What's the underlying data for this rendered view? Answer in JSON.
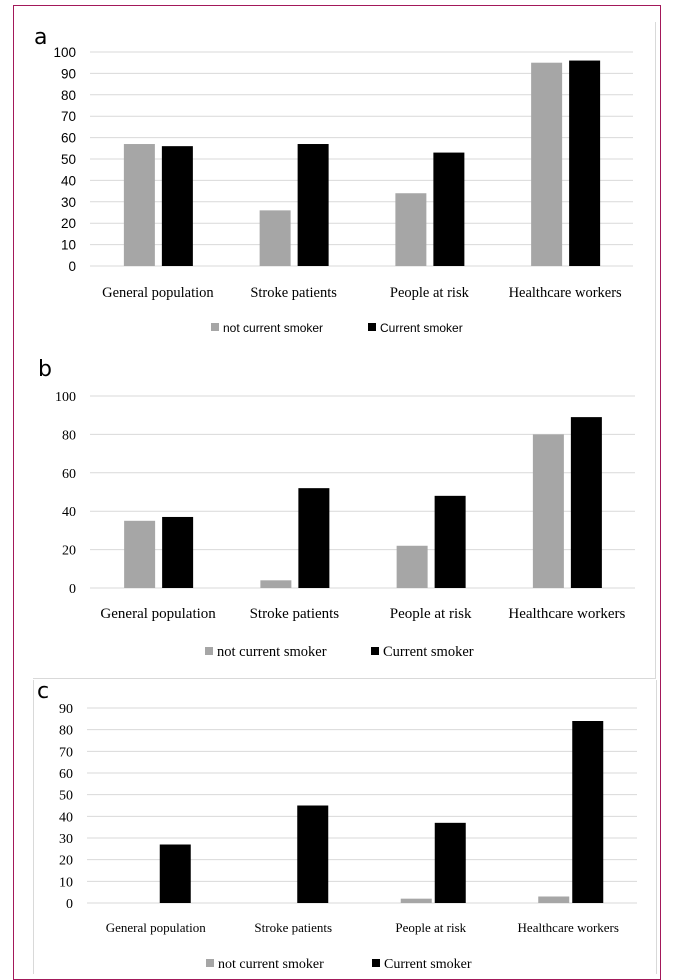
{
  "chart_data": [
    {
      "type": "bar",
      "panel_label": "a",
      "categories": [
        "General population",
        "Stroke patients",
        "People at risk",
        "Healthcare workers"
      ],
      "series": [
        {
          "name": "not current smoker",
          "color": "#a6a6a6",
          "values": [
            57,
            26,
            34,
            95
          ]
        },
        {
          "name": "Current smoker",
          "color": "#000000",
          "values": [
            56,
            57,
            53,
            96
          ]
        }
      ],
      "ylim": [
        0,
        100
      ],
      "yticks": [
        0,
        10,
        20,
        30,
        40,
        50,
        60,
        70,
        80,
        90,
        100
      ],
      "grid": true,
      "legend_position": "bottom"
    },
    {
      "type": "bar",
      "panel_label": "b",
      "categories": [
        "General population",
        "Stroke patients",
        "People at risk",
        "Healthcare workers"
      ],
      "series": [
        {
          "name": "not current smoker",
          "color": "#a6a6a6",
          "values": [
            35,
            4,
            22,
            80
          ]
        },
        {
          "name": "Current smoker",
          "color": "#000000",
          "values": [
            37,
            52,
            48,
            89
          ]
        }
      ],
      "ylim": [
        0,
        100
      ],
      "yticks": [
        0,
        20,
        40,
        60,
        80,
        100
      ],
      "grid": true,
      "legend_position": "bottom"
    },
    {
      "type": "bar",
      "panel_label": "c",
      "categories": [
        "General population",
        "Stroke patients",
        "People at risk",
        "Healthcare workers"
      ],
      "series": [
        {
          "name": "not current smoker",
          "color": "#a6a6a6",
          "values": [
            0,
            0,
            2,
            3
          ]
        },
        {
          "name": "Current smoker",
          "color": "#000000",
          "values": [
            27,
            45,
            37,
            84
          ]
        }
      ],
      "ylim": [
        0,
        90
      ],
      "yticks": [
        0,
        10,
        20,
        30,
        40,
        50,
        60,
        70,
        80,
        90
      ],
      "grid": true,
      "legend_position": "bottom"
    }
  ]
}
